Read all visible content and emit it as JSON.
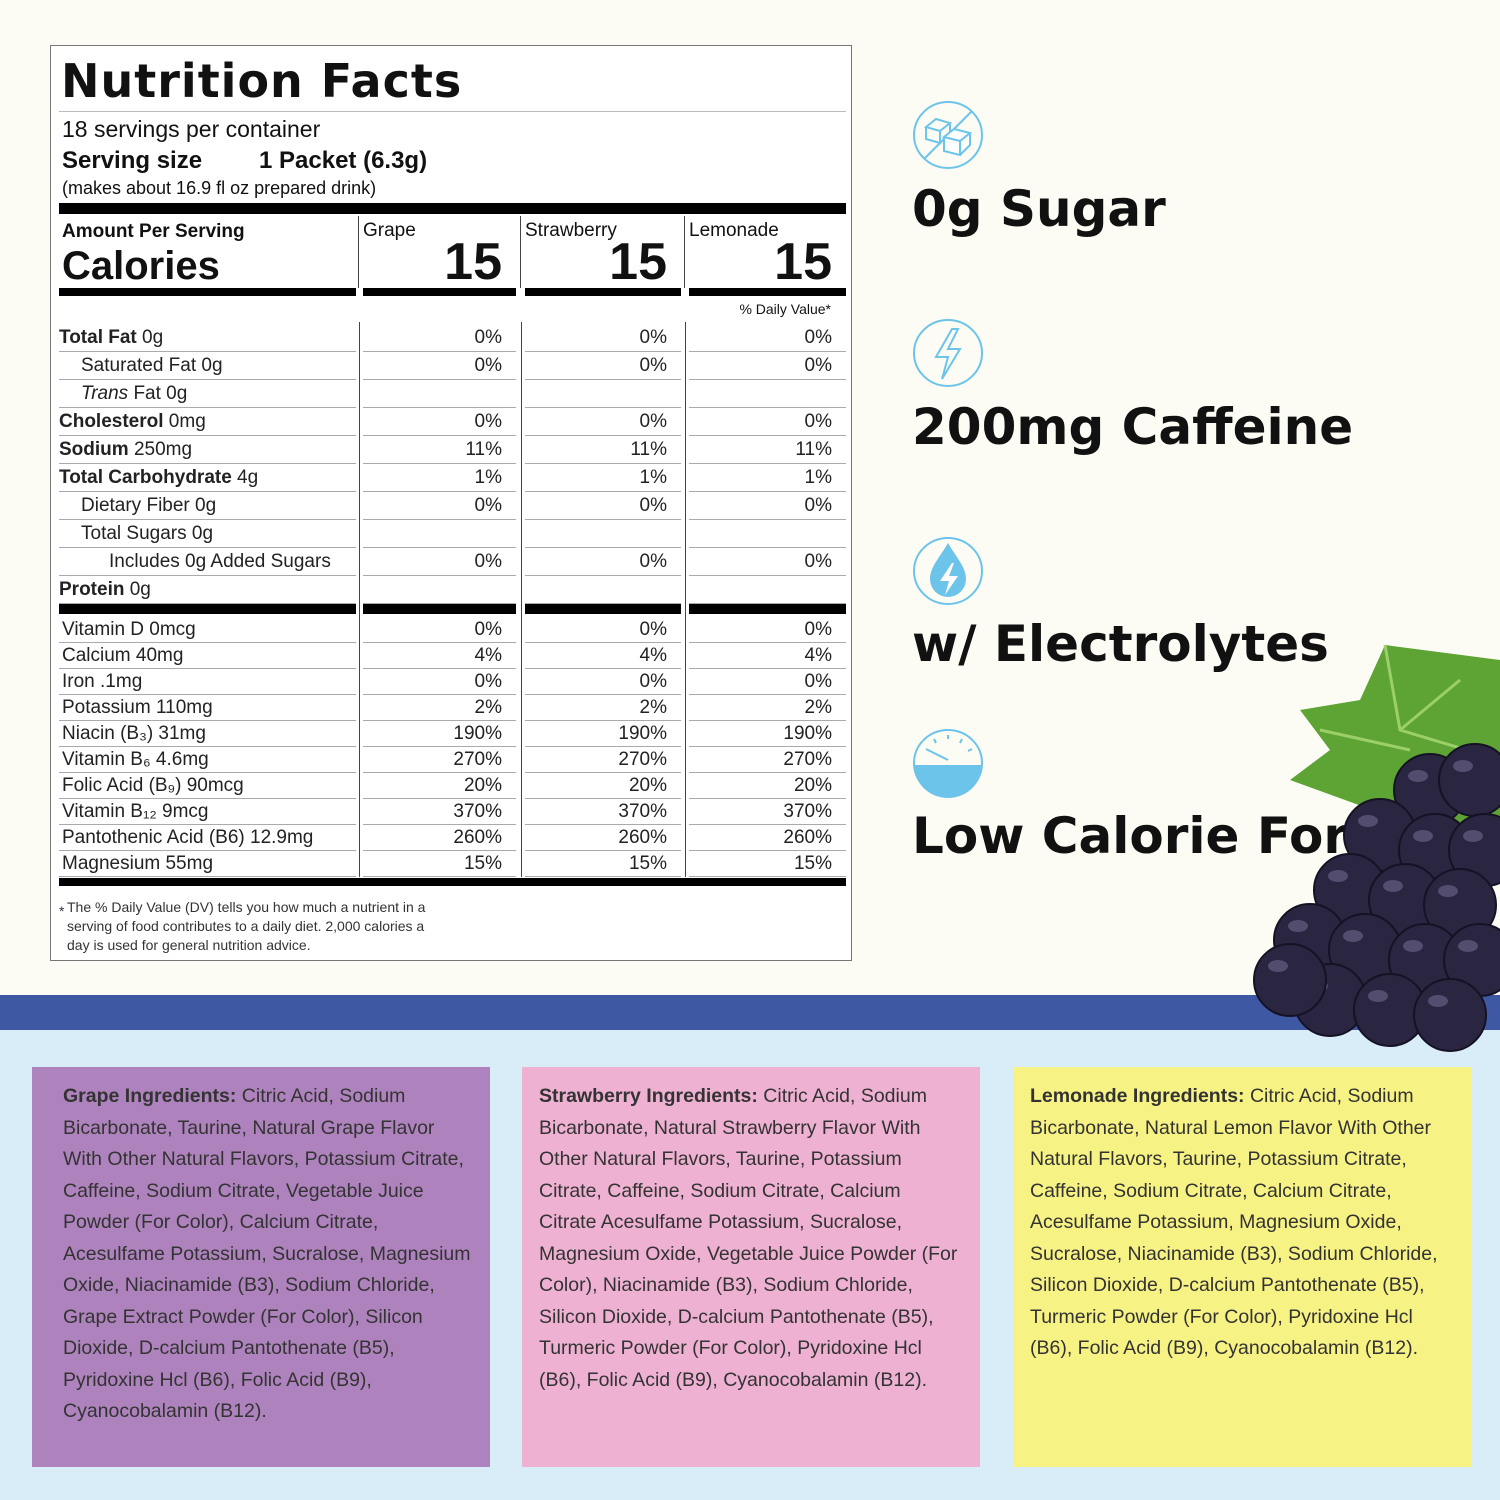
{
  "label": {
    "title": "Nutrition Facts",
    "servings": "18 servings per container",
    "serving_size_label": "Serving size",
    "serving_size_value": "1 Packet (6.3g)",
    "makes": "(makes about 16.9 fl oz prepared drink)",
    "amount_per_serving": "Amount Per Serving",
    "calories_label": "Calories",
    "flavors": [
      {
        "name": "Grape",
        "calories": "15"
      },
      {
        "name": "Strawberry",
        "calories": "15"
      },
      {
        "name": "Lemonade",
        "calories": "15"
      }
    ],
    "dv_header": "% Daily Value*",
    "rows": [
      {
        "bold": "Total Fat",
        "rest": " 0g",
        "indent": 0,
        "values": [
          "0%",
          "0%",
          "0%"
        ]
      },
      {
        "bold": "",
        "rest": "Saturated Fat 0g",
        "indent": 1,
        "values": [
          "0%",
          "0%",
          "0%"
        ]
      },
      {
        "bold": "",
        "italic": "Trans",
        "rest": " Fat 0g",
        "indent": 1,
        "values": [
          "",
          "",
          ""
        ]
      },
      {
        "bold": "Cholesterol",
        "rest": " 0mg",
        "indent": 0,
        "values": [
          "0%",
          "0%",
          "0%"
        ]
      },
      {
        "bold": "Sodium",
        "rest": " 250mg",
        "indent": 0,
        "values": [
          "11%",
          "11%",
          "11%"
        ]
      },
      {
        "bold": "Total Carbohydrate",
        "rest": " 4g",
        "indent": 0,
        "values": [
          "1%",
          "1%",
          "1%"
        ]
      },
      {
        "bold": "",
        "rest": "Dietary Fiber 0g",
        "indent": 1,
        "values": [
          "0%",
          "0%",
          "0%"
        ]
      },
      {
        "bold": "",
        "rest": "Total Sugars 0g",
        "indent": 1,
        "values": [
          "",
          "",
          ""
        ]
      },
      {
        "bold": "",
        "rest": "Includes 0g Added Sugars",
        "indent": 2,
        "values": [
          "0%",
          "0%",
          "0%"
        ]
      },
      {
        "bold": "Protein",
        "rest": " 0g",
        "indent": 0,
        "values": [
          "",
          "",
          ""
        ]
      }
    ],
    "vitamins": [
      {
        "rest": "Vitamin D 0mcg",
        "values": [
          "0%",
          "0%",
          "0%"
        ]
      },
      {
        "rest": "Calcium 40mg",
        "values": [
          "4%",
          "4%",
          "4%"
        ]
      },
      {
        "rest": "Iron .1mg",
        "values": [
          "0%",
          "0%",
          "0%"
        ]
      },
      {
        "rest": "Potassium 110mg",
        "values": [
          "2%",
          "2%",
          "2%"
        ]
      },
      {
        "rest": "Niacin (B₃) 31mg",
        "values": [
          "190%",
          "190%",
          "190%"
        ]
      },
      {
        "rest": "Vitamin B₆ 4.6mg",
        "values": [
          "270%",
          "270%",
          "270%"
        ]
      },
      {
        "rest": "Folic Acid (B₉) 90mcg",
        "values": [
          "20%",
          "20%",
          "20%"
        ]
      },
      {
        "rest": "Vitamin B₁₂ 9mcg",
        "values": [
          "370%",
          "370%",
          "370%"
        ]
      },
      {
        "rest": "Pantothenic Acid (B6) 12.9mg",
        "values": [
          "260%",
          "260%",
          "260%"
        ]
      },
      {
        "rest": "Magnesium 55mg",
        "values": [
          "15%",
          "15%",
          "15%"
        ]
      }
    ],
    "footnote_mark": "*",
    "footnote": "The % Daily Value (DV) tells you how much a nutrient in a serving of food contributes to a daily diet. 2,000 calories a day is used for general nutrition advice."
  },
  "features": [
    {
      "icon": "sugar-cubes-crossed-icon",
      "text": "0g Sugar"
    },
    {
      "icon": "lightning-bolt-icon",
      "text": "200mg Caffeine"
    },
    {
      "icon": "water-drop-bolt-icon",
      "text": "w/ Electrolytes"
    },
    {
      "icon": "gauge-icon",
      "text": "Low Calorie Formula"
    }
  ],
  "colors": {
    "icon_blue": "#6cc4ea",
    "band": "#3f58a4",
    "grape_box": "#ae83bd",
    "strawberry_box": "#eeb1d2",
    "lemonade_box": "#f7f284",
    "lower_bg": "#d8edf7"
  },
  "ingredients": [
    {
      "heading": "Grape Ingredients:",
      "text": " Citric Acid, Sodium Bicarbonate, Taurine, Natural Grape Flavor With Other Natural Flavors, Potassium Citrate, Caffeine, Sodium Citrate, Vegetable Juice Powder (For Color), Calcium Citrate, Acesulfame Potassium, Sucralose, Magnesium Oxide, Niacinamide (B3), Sodium Chloride, Grape Extract Powder (For Color), Silicon Dioxide, D-calcium Pantothenate (B5), Pyridoxine Hcl (B6), Folic Acid (B9), Cyanocobalamin (B12)."
    },
    {
      "heading": "Strawberry Ingredients:",
      "text": " Citric Acid, Sodium Bicarbonate, Natural Strawberry Flavor With Other Natural Flavors, Taurine, Potassium Citrate, Caffeine, Sodium Citrate, Calcium Citrate Acesulfame Potassium, Sucralose, Magnesium Oxide, Vegetable Juice Powder (For Color), Niacinamide (B3), Sodium Chloride, Silicon Dioxide, D-calcium Pantothenate (B5), Turmeric Powder (For Color), Pyridoxine Hcl (B6), Folic Acid (B9), Cyanocobalamin (B12)."
    },
    {
      "heading": "Lemonade Ingredients:",
      "text": " Citric Acid, Sodium Bicarbonate, Natural Lemon Flavor With Other Natural Flavors, Taurine, Potassium Citrate, Caffeine, Sodium Citrate, Calcium Citrate, Acesulfame Potassium, Magnesium Oxide, Sucralose, Niacinamide (B3), Sodium Chloride, Silicon Dioxide, D-calcium Pantothenate (B5), Turmeric Powder (For Color), Pyridoxine Hcl (B6), Folic Acid (B9), Cyanocobalamin (B12)."
    }
  ]
}
